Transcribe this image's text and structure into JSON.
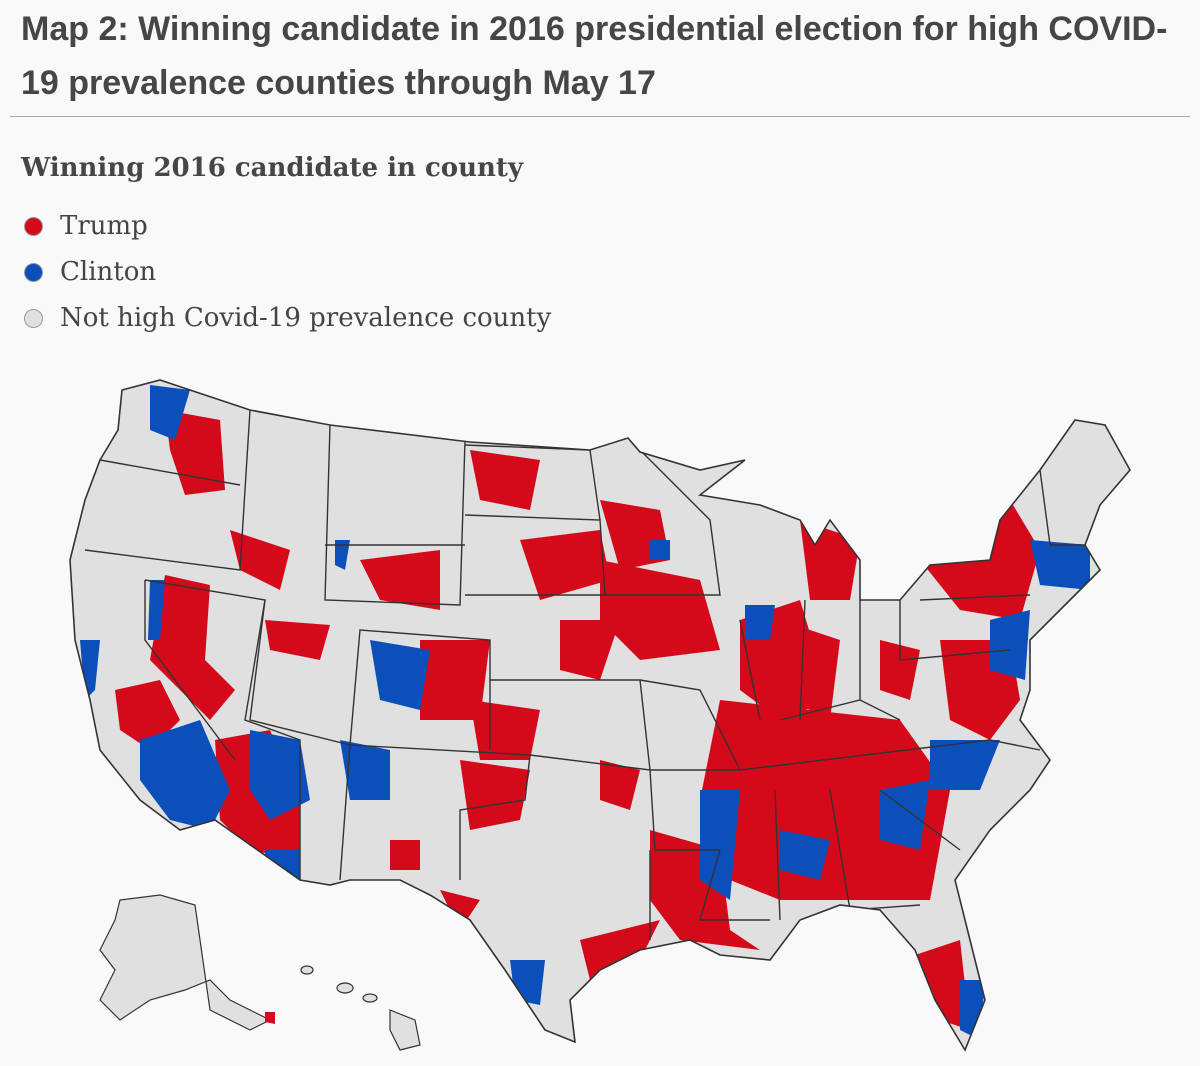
{
  "title": "Map 2: Winning candidate in 2016 presidential election for high COVID-19 prevalence counties through May 17",
  "legend": {
    "title": "Winning 2016 candidate in county",
    "items": [
      {
        "label": "Trump",
        "color": "#d40a1a"
      },
      {
        "label": "Clinton",
        "color": "#0b4fbb"
      },
      {
        "label": "Not high Covid-19 prevalence county",
        "color": "#e0e0e0"
      }
    ]
  },
  "colors": {
    "border": "#333333",
    "background": "#f9f9f9"
  }
}
